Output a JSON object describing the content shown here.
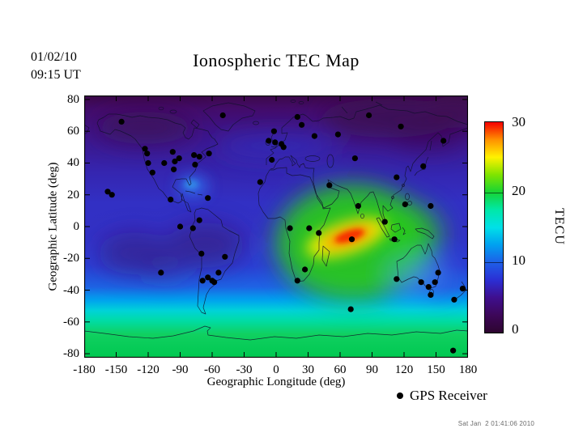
{
  "header": {
    "date": "01/02/10",
    "time": "09:15 UT",
    "title": "Ionospheric TEC Map"
  },
  "axes": {
    "x_label": "Geographic Longitude (deg)",
    "y_label": "Geographic Latitude (deg)",
    "x_ticks": [
      -180,
      -150,
      -120,
      -90,
      -60,
      -30,
      0,
      30,
      60,
      90,
      120,
      150,
      180
    ],
    "y_ticks": [
      80,
      60,
      40,
      20,
      0,
      -20,
      -40,
      -60,
      -80
    ]
  },
  "colorbar": {
    "unit": "TECU",
    "ticks": [
      30,
      20,
      10,
      0
    ],
    "min": 0,
    "max": 30,
    "gradient_bottom_to_top": [
      "#2d052f",
      "#3d0759",
      "#3f0f8e",
      "#2b2fd4",
      "#1e5fe8",
      "#00a0f0",
      "#00e0e8",
      "#00e8a8",
      "#16d435",
      "#7fe400",
      "#fff200",
      "#ff9100",
      "#f50000"
    ]
  },
  "legend": {
    "label": "GPS Receiver"
  },
  "footer": {
    "timestamp": "Sat Jan  2 01:41:06 2010"
  },
  "chart_data": {
    "type": "heatmap",
    "title": "Ionospheric TEC Map",
    "datetime_label": "01/02/10 09:15 UT",
    "xlabel": "Geographic Longitude (deg)",
    "ylabel": "Geographic Latitude (deg)",
    "xlim": [
      -180,
      180
    ],
    "ylim": [
      -82.5,
      82.5
    ],
    "value_unit": "TECU",
    "value_range": [
      0,
      30
    ],
    "colorbar_ticks": [
      0,
      10,
      20,
      30
    ],
    "peak": {
      "lon": 70,
      "lat": -7,
      "value_tecu": 30,
      "note": "red-orange TEC enhancement over the central Indian Ocean"
    },
    "pattern_notes": [
      "dark purple minimum (0-4 TECU) over high northern latitudes, Siberia, northwest Canada and the night-side Americas/Pacific",
      "broad green daytime region (18-22 TECU) over Africa, the Middle East, India and Southeast Asia",
      "cyan-to-green band (10-20 TECU) across southern mid/high latitudes and around Antarctica",
      "light blue patch near Florida/Caribbean and over Australia"
    ],
    "gps_receivers_lonlat": [
      [
        -145,
        66
      ],
      [
        -123,
        49
      ],
      [
        -121,
        46
      ],
      [
        -120,
        40
      ],
      [
        -116,
        34
      ],
      [
        -105,
        40
      ],
      [
        -97,
        47
      ],
      [
        -95,
        41
      ],
      [
        -91,
        43
      ],
      [
        -96,
        36
      ],
      [
        -77,
        45
      ],
      [
        -72,
        44
      ],
      [
        -63,
        46
      ],
      [
        -76,
        39
      ],
      [
        -158,
        22
      ],
      [
        -154,
        20
      ],
      [
        -99,
        17
      ],
      [
        -64,
        18
      ],
      [
        -90,
        0
      ],
      [
        -78,
        -1
      ],
      [
        -72,
        4
      ],
      [
        -70,
        -17
      ],
      [
        -48,
        -19
      ],
      [
        -108,
        -29
      ],
      [
        -54,
        -29
      ],
      [
        -69,
        -34
      ],
      [
        -64,
        -32
      ],
      [
        -60,
        -34
      ],
      [
        -58,
        -35
      ],
      [
        -50,
        70
      ],
      [
        -2,
        60
      ],
      [
        -7,
        54
      ],
      [
        -1,
        53
      ],
      [
        5,
        52
      ],
      [
        7,
        50
      ],
      [
        24,
        64
      ],
      [
        20,
        69
      ],
      [
        36,
        57
      ],
      [
        -4,
        42
      ],
      [
        -15,
        28
      ],
      [
        50,
        26
      ],
      [
        58,
        58
      ],
      [
        87,
        70
      ],
      [
        117,
        63
      ],
      [
        157,
        54
      ],
      [
        74,
        43
      ],
      [
        138,
        38
      ],
      [
        113,
        31
      ],
      [
        121,
        14
      ],
      [
        145,
        13
      ],
      [
        77,
        13
      ],
      [
        102,
        3
      ],
      [
        111,
        -8
      ],
      [
        13,
        -1
      ],
      [
        31,
        -1
      ],
      [
        40,
        -4
      ],
      [
        71,
        -8
      ],
      [
        27,
        -27
      ],
      [
        20,
        -34
      ],
      [
        70,
        -52
      ],
      [
        113,
        -33
      ],
      [
        136,
        -35
      ],
      [
        143,
        -38
      ],
      [
        149,
        -35
      ],
      [
        152,
        -29
      ],
      [
        145,
        -43
      ],
      [
        167,
        -46
      ],
      [
        175,
        -39
      ],
      [
        166,
        -78
      ]
    ]
  }
}
